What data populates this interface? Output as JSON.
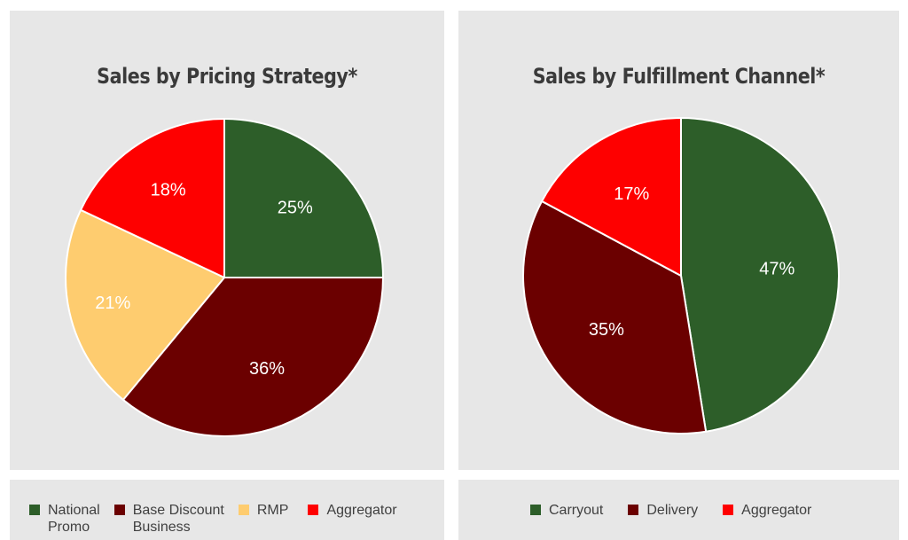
{
  "chart_data": [
    {
      "type": "pie",
      "title": "Sales by Pricing Strategy*",
      "categories": [
        "National Promo",
        "Base Discount Business",
        "RMP",
        "Aggregator"
      ],
      "values": [
        25,
        36,
        21,
        18
      ],
      "labels": [
        "25%",
        "36%",
        "21%",
        "18%"
      ],
      "colors": [
        "#2d5e29",
        "#6b0000",
        "#fecc6f",
        "#fe0000"
      ],
      "legend_position": "bottom"
    },
    {
      "type": "pie",
      "title": "Sales by Fulfillment Channel*",
      "categories": [
        "Carryout",
        "Delivery",
        "Aggregator"
      ],
      "values": [
        47,
        35,
        17
      ],
      "labels": [
        "47%",
        "35%",
        "17%"
      ],
      "colors": [
        "#2d5e29",
        "#6b0000",
        "#fe0000"
      ],
      "legend_position": "bottom"
    }
  ],
  "legends": {
    "left": [
      {
        "lines": [
          "National",
          "Promo"
        ],
        "color": "#2d5e29"
      },
      {
        "lines": [
          "Base Discount",
          "Business"
        ],
        "color": "#6b0000"
      },
      {
        "lines": [
          "RMP"
        ],
        "color": "#fecc6f"
      },
      {
        "lines": [
          "Aggregator"
        ],
        "color": "#fe0000"
      }
    ],
    "right": [
      {
        "lines": [
          "Carryout"
        ],
        "color": "#2d5e29"
      },
      {
        "lines": [
          "Delivery"
        ],
        "color": "#6b0000"
      },
      {
        "lines": [
          "Aggregator"
        ],
        "color": "#fe0000"
      }
    ]
  }
}
